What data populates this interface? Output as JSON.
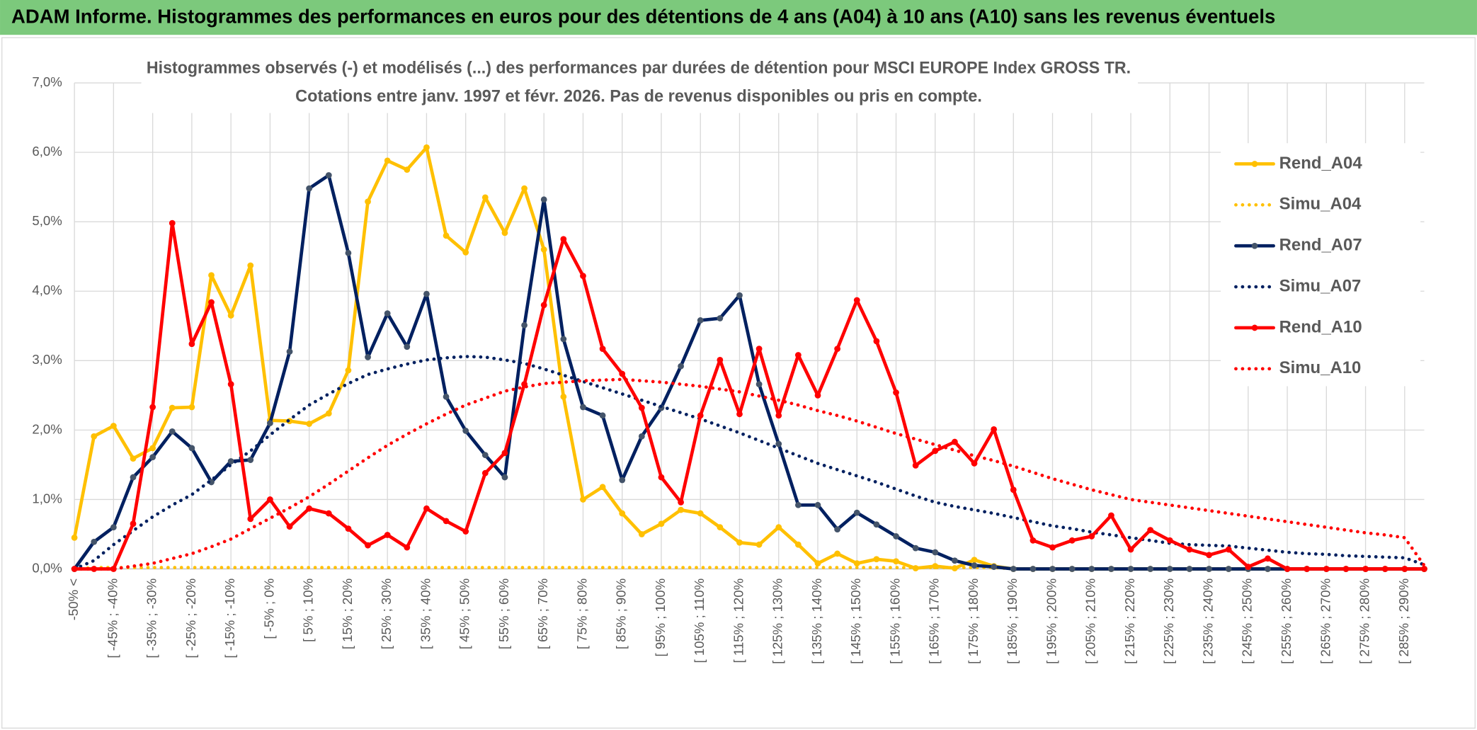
{
  "header": {
    "title": "ADAM Informe. Histogrammes des performances en euros pour des détentions de 4 ans (A04) à 10 ans (A10) sans les revenus éventuels"
  },
  "chart_data": {
    "type": "line",
    "title": "Histogrammes observés (-) et modélisés (...) des performances par durées de détention pour MSCI EUROPE Index GROSS TR.",
    "subtitle": "Cotations entre janv. 1997 et févr. 2026. Pas de revenus disponibles ou pris en compte.",
    "categories": [
      "-50% <",
      null,
      "[ -45% ; -40%",
      null,
      "[ -35% ; -30%",
      null,
      "[ -25% ; -20%",
      null,
      "[ -15% ; -10%",
      null,
      "[ -5% ; 0%",
      null,
      "[ 5% ; 10%",
      null,
      "[ 15% ; 20%",
      null,
      "[ 25% ; 30%",
      null,
      "[ 35% ; 40%",
      null,
      "[ 45% ; 50%",
      null,
      "[ 55% ; 60%",
      null,
      "[ 65% ; 70%",
      null,
      "[ 75% ; 80%",
      null,
      "[ 85% ; 90%",
      null,
      "[ 95% ; 100%",
      null,
      "[ 105% ; 110%",
      null,
      "[ 115% ; 120%",
      null,
      "[ 125% ; 130%",
      null,
      "[ 135% ; 140%",
      null,
      "[ 145% ; 150%",
      null,
      "[ 155% ; 160%",
      null,
      "[ 165% ; 170%",
      null,
      "[ 175% ; 180%",
      null,
      "[ 185% ; 190%",
      null,
      "[ 195% ; 200%",
      null,
      "[ 205% ; 210%",
      null,
      "[ 215% ; 220%",
      null,
      "[ 225% ; 230%",
      null,
      "[ 235% ; 240%",
      null,
      "[ 245% ; 250%",
      null,
      "[ 255% ; 260%",
      null,
      "[ 265% ; 270%",
      null,
      "[ 275% ; 280%",
      null,
      "[ 285% ; 290%",
      null
    ],
    "series": [
      {
        "name": "Rend_A04",
        "color": "#FFC000",
        "line_style": "solid",
        "markers": true,
        "values": [
          0.45,
          1.91,
          2.06,
          1.59,
          1.74,
          2.32,
          2.33,
          4.23,
          3.65,
          4.37,
          2.14,
          2.13,
          2.09,
          2.24,
          2.86,
          5.29,
          5.88,
          5.75,
          6.07,
          4.8,
          4.56,
          5.35,
          4.84,
          5.48,
          4.6,
          2.48,
          1.0,
          1.18,
          0.8,
          0.5,
          0.65,
          0.85,
          0.8,
          0.6,
          0.38,
          0.35,
          0.6,
          0.35,
          0.08,
          0.22,
          0.08,
          0.14,
          0.11,
          0.01,
          0.04,
          0.01,
          0.13,
          0.04,
          0,
          0,
          0,
          0,
          0,
          0,
          0,
          0,
          0,
          0,
          0,
          0,
          0,
          0,
          0,
          0,
          0,
          0,
          0,
          0,
          0,
          0
        ]
      },
      {
        "name": "Simu_A04",
        "color": "#FFC000",
        "line_style": "dotted",
        "markers": false,
        "values": [
          0,
          0.02,
          0.02,
          0.02,
          0.02,
          0.02,
          0.02,
          0.02,
          0.02,
          0.02,
          0.02,
          0.02,
          0.02,
          0.02,
          0.02,
          0.02,
          0.02,
          0.02,
          0.02,
          0.02,
          0.02,
          0.02,
          0.02,
          0.02,
          0.02,
          0.02,
          0.02,
          0.02,
          0.02,
          0.02,
          0.02,
          0.02,
          0.02,
          0.02,
          0.02,
          0.02,
          0.02,
          0.02,
          0.02,
          0.02,
          0.02,
          0.02,
          0.02,
          0.02,
          0.02,
          0.02,
          0.02,
          0.02,
          0,
          0,
          0,
          0,
          0,
          0,
          0,
          0,
          0,
          0,
          0,
          0,
          0,
          0,
          0,
          0,
          0,
          0,
          0,
          0,
          0,
          0
        ]
      },
      {
        "name": "Rend_A07",
        "color": "#002060",
        "line_style": "solid",
        "markers": true,
        "values": [
          0,
          0.39,
          0.6,
          1.32,
          1.61,
          1.98,
          1.74,
          1.25,
          1.55,
          1.57,
          2.1,
          3.13,
          5.48,
          5.67,
          4.55,
          3.05,
          3.68,
          3.2,
          3.96,
          2.48,
          1.99,
          1.64,
          1.32,
          3.51,
          5.32,
          3.31,
          2.33,
          2.21,
          1.28,
          1.91,
          2.32,
          2.92,
          3.58,
          3.61,
          3.94,
          2.66,
          1.8,
          0.92,
          0.92,
          0.57,
          0.81,
          0.64,
          0.47,
          0.3,
          0.24,
          0.12,
          0.05,
          0.03,
          0,
          0,
          0,
          0,
          0,
          0,
          0,
          0,
          0,
          0,
          0,
          0,
          0,
          0,
          0,
          0,
          0,
          0,
          0,
          0,
          0,
          0
        ]
      },
      {
        "name": "Simu_A07",
        "color": "#002060",
        "line_style": "dotted",
        "markers": false,
        "values": [
          0,
          0.12,
          0.35,
          0.55,
          0.75,
          0.92,
          1.07,
          1.28,
          1.5,
          1.7,
          1.93,
          2.15,
          2.36,
          2.52,
          2.67,
          2.8,
          2.88,
          2.95,
          3.01,
          3.04,
          3.06,
          3.05,
          3.01,
          2.96,
          2.88,
          2.79,
          2.7,
          2.61,
          2.52,
          2.43,
          2.34,
          2.25,
          2.16,
          2.06,
          1.96,
          1.85,
          1.74,
          1.63,
          1.52,
          1.43,
          1.34,
          1.25,
          1.15,
          1.05,
          0.96,
          0.9,
          0.85,
          0.8,
          0.74,
          0.68,
          0.62,
          0.58,
          0.53,
          0.49,
          0.45,
          0.41,
          0.37,
          0.35,
          0.34,
          0.33,
          0.3,
          0.27,
          0.24,
          0.22,
          0.21,
          0.19,
          0.18,
          0.17,
          0.16,
          0.06
        ]
      },
      {
        "name": "Rend_A10",
        "color": "#FF0000",
        "line_style": "solid",
        "markers": true,
        "values": [
          0,
          0,
          0,
          0.65,
          2.33,
          4.98,
          3.24,
          3.84,
          2.66,
          0.72,
          1.0,
          0.61,
          0.87,
          0.8,
          0.58,
          0.34,
          0.49,
          0.31,
          0.87,
          0.69,
          0.54,
          1.38,
          1.67,
          2.66,
          3.8,
          4.75,
          4.22,
          3.17,
          2.81,
          2.32,
          1.32,
          0.96,
          2.21,
          3.01,
          2.23,
          3.17,
          2.21,
          3.08,
          2.5,
          3.17,
          3.87,
          3.28,
          2.54,
          1.49,
          1.7,
          1.83,
          1.52,
          2.01,
          1.14,
          0.41,
          0.31,
          0.41,
          0.47,
          0.77,
          0.28,
          0.56,
          0.41,
          0.28,
          0.2,
          0.28,
          0.03,
          0.15,
          0,
          0,
          0,
          0,
          0,
          0,
          0,
          0
        ]
      },
      {
        "name": "Simu_A10",
        "color": "#FF0000",
        "line_style": "dotted",
        "markers": false,
        "values": [
          0,
          0,
          0,
          0.04,
          0.08,
          0.15,
          0.22,
          0.32,
          0.43,
          0.58,
          0.73,
          0.88,
          1.04,
          1.22,
          1.41,
          1.6,
          1.78,
          1.94,
          2.09,
          2.23,
          2.36,
          2.46,
          2.56,
          2.62,
          2.67,
          2.69,
          2.71,
          2.72,
          2.73,
          2.71,
          2.69,
          2.66,
          2.63,
          2.59,
          2.55,
          2.49,
          2.43,
          2.36,
          2.28,
          2.21,
          2.13,
          2.04,
          1.95,
          1.87,
          1.79,
          1.71,
          1.63,
          1.56,
          1.48,
          1.39,
          1.3,
          1.22,
          1.14,
          1.07,
          1.0,
          0.96,
          0.92,
          0.88,
          0.84,
          0.8,
          0.76,
          0.72,
          0.68,
          0.64,
          0.6,
          0.56,
          0.52,
          0.49,
          0.45,
          0.05
        ]
      }
    ],
    "ylim": [
      0,
      7
    ],
    "yticks": [
      {
        "value": 0,
        "label": "0,0%"
      },
      {
        "value": 1,
        "label": "1,0%"
      },
      {
        "value": 2,
        "label": "2,0%"
      },
      {
        "value": 3,
        "label": "3,0%"
      },
      {
        "value": 4,
        "label": "4,0%"
      },
      {
        "value": 5,
        "label": "5,0%"
      },
      {
        "value": 6,
        "label": "6,0%"
      },
      {
        "value": 7,
        "label": "7,0%"
      }
    ],
    "grid": true,
    "legend": "right"
  }
}
